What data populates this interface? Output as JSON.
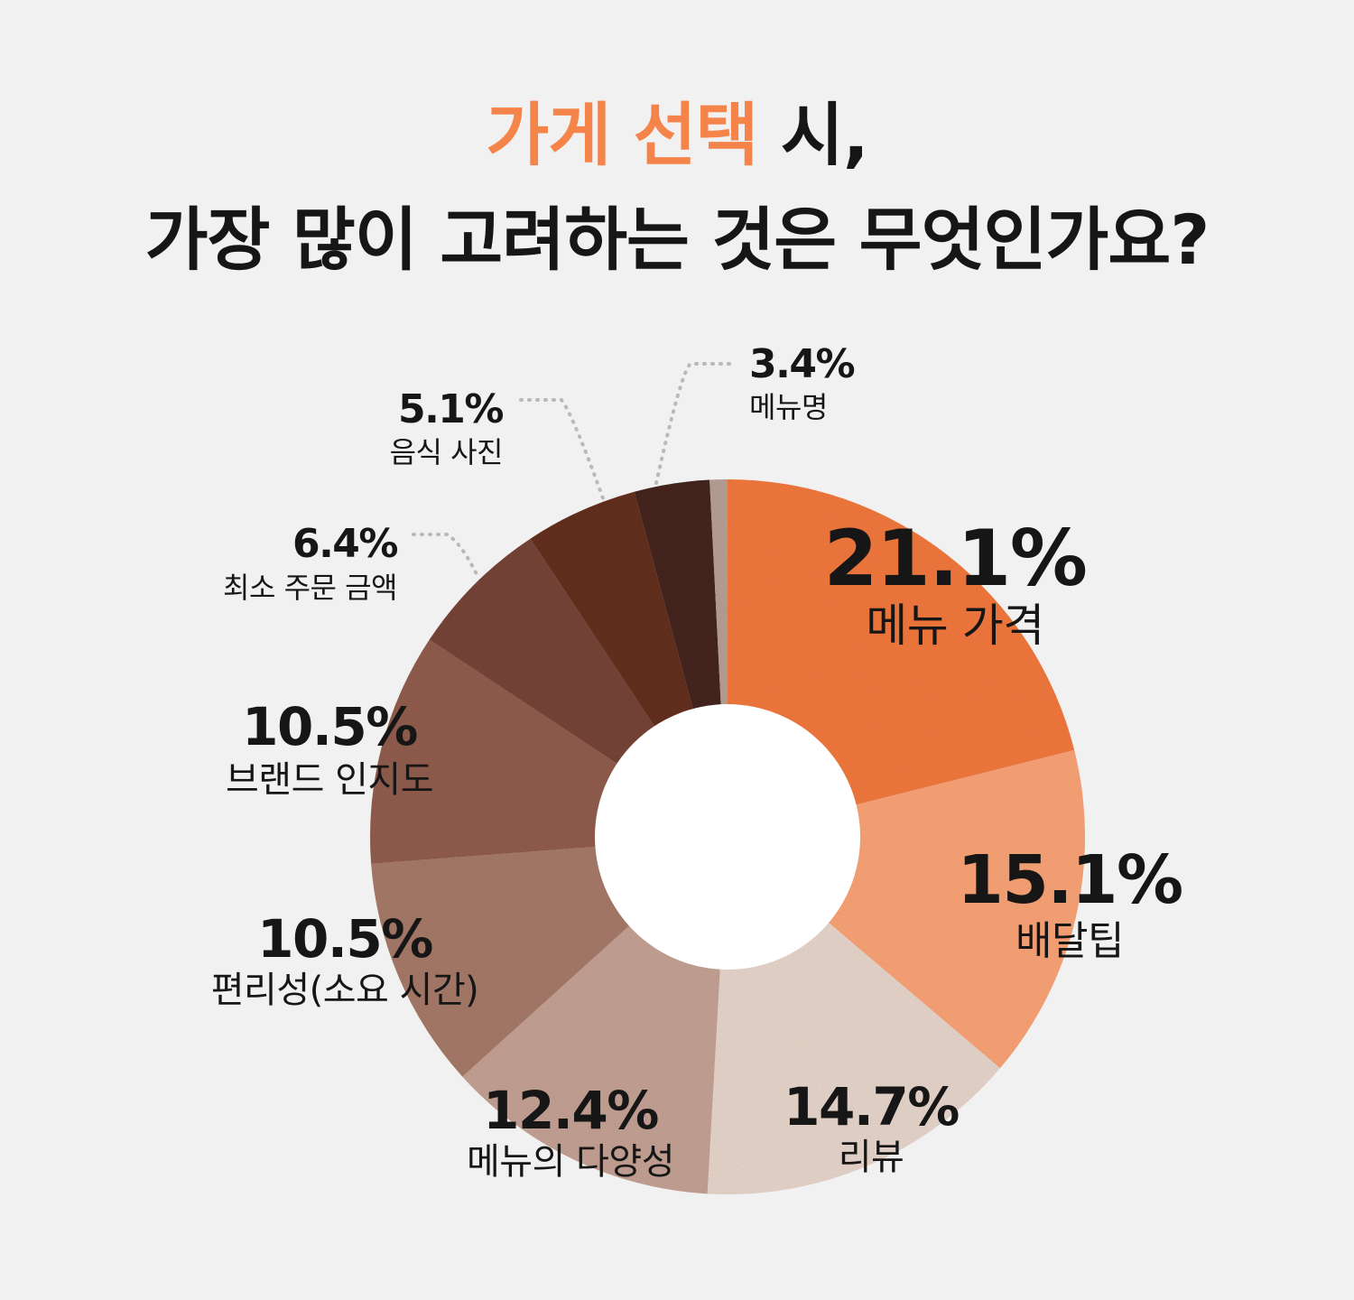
{
  "title": {
    "highlight": "가게 선택",
    "line1_rest": " 시,",
    "line2": "가장 많이 고려하는 것은 무엇인가요?"
  },
  "colors": {
    "highlight": "#f5844a",
    "background": "#f1f1f1"
  },
  "chart_data": {
    "type": "pie",
    "donut": true,
    "title": "가게 선택 시, 가장 많이 고려하는 것은 무엇인가요?",
    "unit": "%",
    "categories": [
      "메뉴 가격",
      "배달팁",
      "리뷰",
      "메뉴의 다양성",
      "편리성(소요 시간)",
      "브랜드 인지도",
      "최소 주문 금액",
      "음식 사진",
      "메뉴명",
      ""
    ],
    "values": [
      21.1,
      15.1,
      14.7,
      12.4,
      10.5,
      10.5,
      6.4,
      5.1,
      3.4,
      0.8
    ],
    "value_labels": [
      "21.1%",
      "15.1%",
      "14.7%",
      "12.4%",
      "10.5%",
      "10.5%",
      "6.4%",
      "5.1%",
      "3.4%",
      ""
    ],
    "colors": [
      "#f57a3e",
      "#fda578",
      "#ead8ce",
      "#c7a396",
      "#a87b6a",
      "#935e4f",
      "#784538",
      "#65301f",
      "#46261d",
      "#b9a195"
    ]
  }
}
